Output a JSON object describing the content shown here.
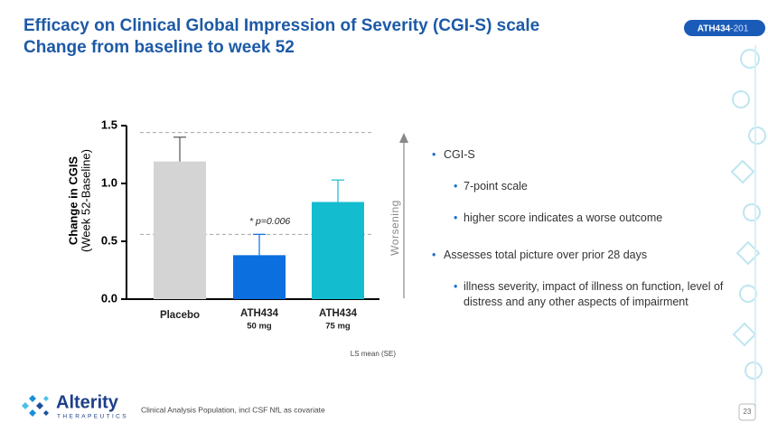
{
  "slide": {
    "title_lines": [
      "Efficacy on Clinical Global Impression of Severity (CGI-S) scale",
      "Change from baseline to week 52"
    ],
    "badge": [
      "ATH434",
      "-201"
    ],
    "bullets": [
      {
        "text": "CGI-S",
        "sub": [
          "7-point scale",
          "higher score indicates a worse outcome"
        ]
      },
      {
        "text": "Assesses total picture over prior 28 days",
        "sub": [
          "illness severity, impact of illness on function, level of distress and any other aspects of impairment"
        ]
      }
    ],
    "footnote": "Clinical Analysis Population, incl CSF NfL as covariate",
    "page_number": "23",
    "logo": {
      "name": "Alterity",
      "tagline": "THERAPEUTICS"
    }
  },
  "chart_data": {
    "type": "bar",
    "y_label": [
      "Change in CGIS",
      "(Week 52-Baseline)"
    ],
    "categories": [
      "Placebo",
      "ATH434",
      "ATH434"
    ],
    "category_doses": [
      null,
      "50 mg",
      "75 mg"
    ],
    "values": [
      1.19,
      0.38,
      0.84
    ],
    "errors": [
      0.21,
      0.18,
      0.19
    ],
    "colors": [
      "#d4d4d4",
      "#0b6fe0",
      "#14bcd0"
    ],
    "error_colors": [
      "#555555",
      "#0b6fe0",
      "#14bcd0"
    ],
    "ylim": [
      0,
      1.5
    ],
    "yticks": [
      {
        "value": 0,
        "label": "0.0"
      },
      {
        "value": 0.5,
        "label": "0.5"
      },
      {
        "value": 1,
        "label": "1.0"
      },
      {
        "value": 1.5,
        "label": "1.5"
      }
    ],
    "reference_lines": [
      1.44,
      0.56
    ],
    "annotation": "* p=0.006",
    "arrow_label": "Worsening",
    "note": "LS mean (SE)"
  }
}
